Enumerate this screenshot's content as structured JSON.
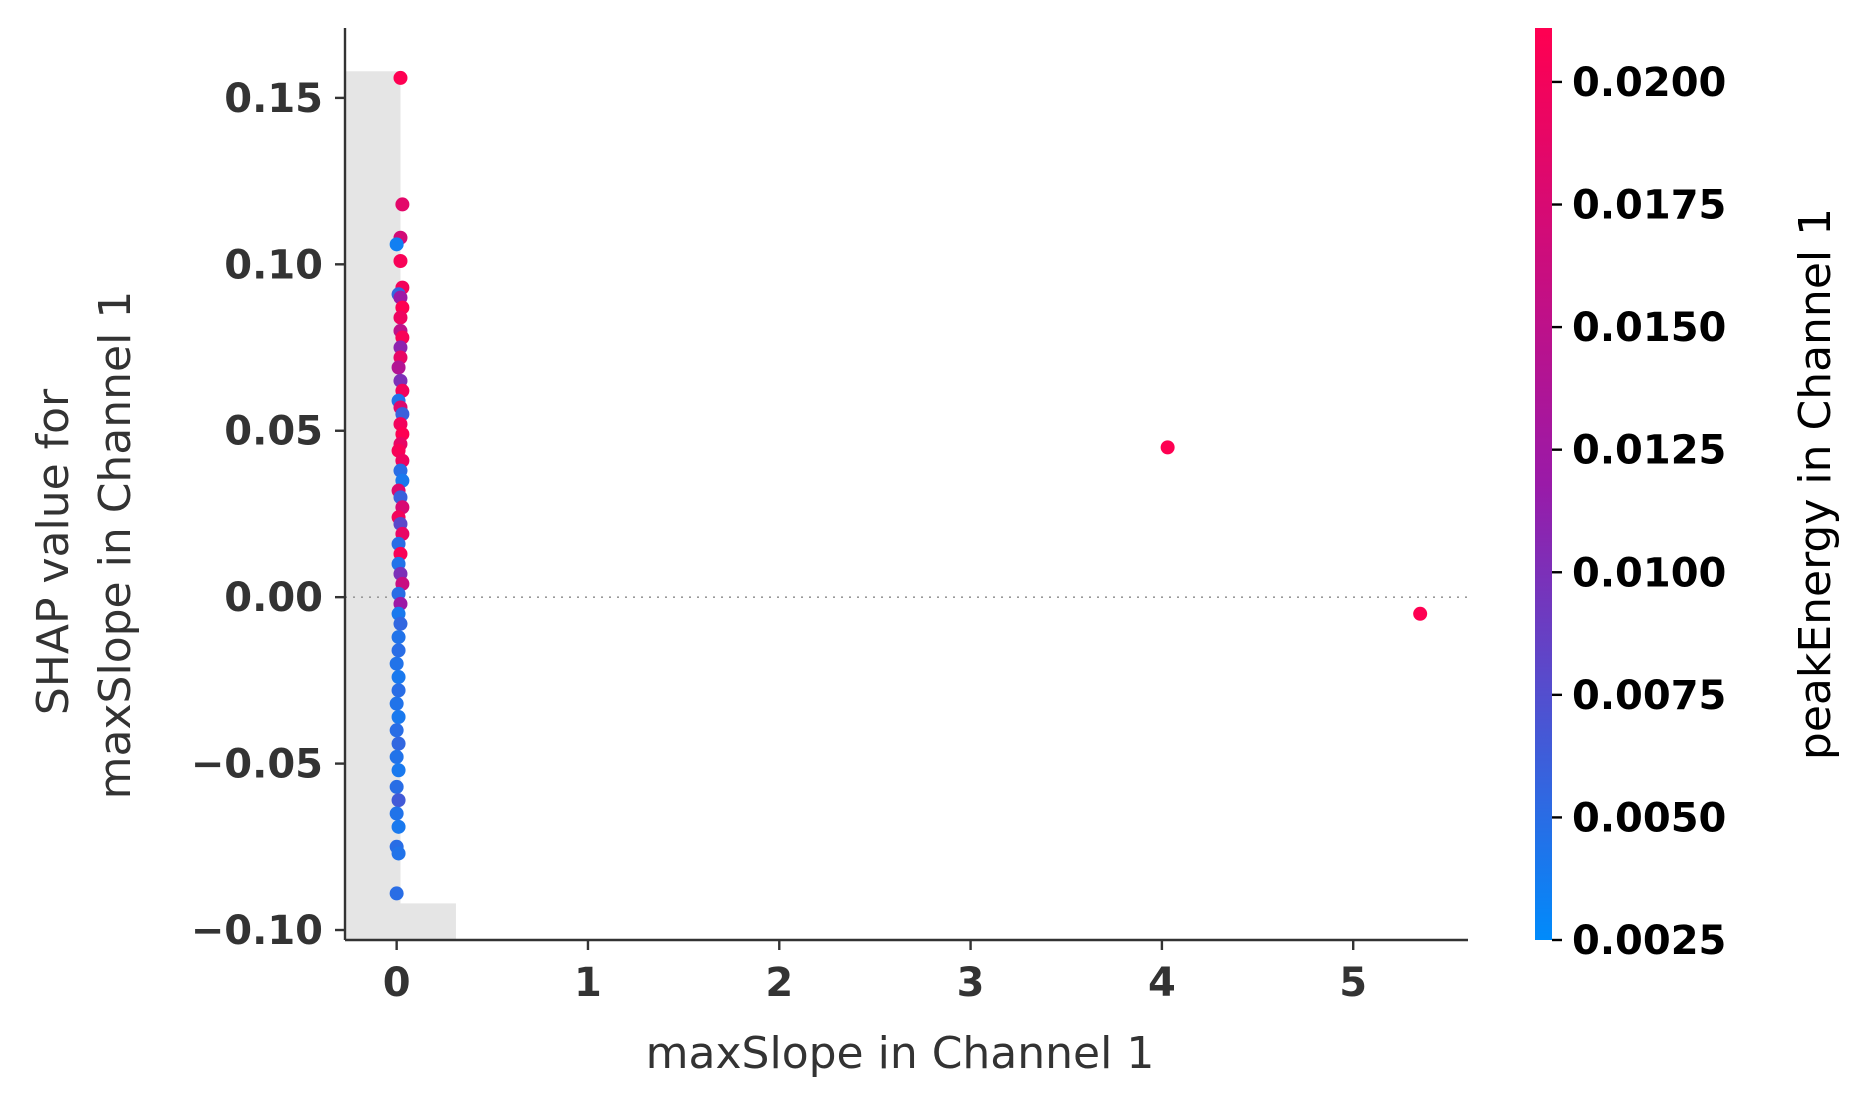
{
  "chart_data": {
    "type": "scatter",
    "xlabel": "maxSlope in Channel 1",
    "ylabel_line1": "SHAP value for",
    "ylabel_line2": "maxSlope in Channel 1",
    "colorbar_label": "peakEnergy in Channel 1",
    "xlim": [
      -0.27,
      5.6
    ],
    "ylim": [
      -0.103,
      0.171
    ],
    "x_ticks": [
      {
        "value": 0,
        "label": "0"
      },
      {
        "value": 1,
        "label": "1"
      },
      {
        "value": 2,
        "label": "2"
      },
      {
        "value": 3,
        "label": "3"
      },
      {
        "value": 4,
        "label": "4"
      },
      {
        "value": 5,
        "label": "5"
      }
    ],
    "y_ticks": [
      {
        "value": 0.15,
        "label": "0.15"
      },
      {
        "value": 0.1,
        "label": "0.10"
      },
      {
        "value": 0.05,
        "label": "0.05"
      },
      {
        "value": 0.0,
        "label": "0.00"
      },
      {
        "value": -0.05,
        "label": "−0.05"
      },
      {
        "value": -0.1,
        "label": "−0.10"
      }
    ],
    "colorbar": {
      "min": 0.0025,
      "max": 0.0211,
      "color_low": "#008bfb",
      "color_mid": "#9a1aa8",
      "color_high": "#ff0051",
      "ticks": [
        {
          "value": 0.0025,
          "label": "0.0025"
        },
        {
          "value": 0.005,
          "label": "0.0050"
        },
        {
          "value": 0.0075,
          "label": "0.0075"
        },
        {
          "value": 0.01,
          "label": "0.0100"
        },
        {
          "value": 0.0125,
          "label": "0.0125"
        },
        {
          "value": 0.015,
          "label": "0.0150"
        },
        {
          "value": 0.0175,
          "label": "0.0175"
        },
        {
          "value": 0.02,
          "label": "0.0200"
        }
      ]
    },
    "histogram": {
      "color": "#e5e5e5",
      "bins": [
        {
          "x0": -0.27,
          "x1": 0.02,
          "top": 0.158
        },
        {
          "x0": 0.02,
          "x1": 0.31,
          "top": -0.092
        }
      ],
      "baseline": -0.103
    },
    "zero_line": {
      "y": 0.0,
      "color": "#999999"
    },
    "points": [
      {
        "x": 0.02,
        "y": 0.156,
        "c": 0.021
      },
      {
        "x": 0.03,
        "y": 0.118,
        "c": 0.0185
      },
      {
        "x": 0.02,
        "y": 0.108,
        "c": 0.017
      },
      {
        "x": 0.0,
        "y": 0.106,
        "c": 0.0035
      },
      {
        "x": 0.02,
        "y": 0.101,
        "c": 0.0205
      },
      {
        "x": 0.03,
        "y": 0.093,
        "c": 0.02
      },
      {
        "x": 0.01,
        "y": 0.091,
        "c": 0.0055
      },
      {
        "x": 0.02,
        "y": 0.09,
        "c": 0.012
      },
      {
        "x": 0.03,
        "y": 0.087,
        "c": 0.021
      },
      {
        "x": 0.02,
        "y": 0.084,
        "c": 0.0195
      },
      {
        "x": 0.02,
        "y": 0.08,
        "c": 0.015
      },
      {
        "x": 0.03,
        "y": 0.078,
        "c": 0.0205
      },
      {
        "x": 0.02,
        "y": 0.075,
        "c": 0.011
      },
      {
        "x": 0.02,
        "y": 0.072,
        "c": 0.019
      },
      {
        "x": 0.01,
        "y": 0.069,
        "c": 0.014
      },
      {
        "x": 0.02,
        "y": 0.065,
        "c": 0.01
      },
      {
        "x": 0.03,
        "y": 0.062,
        "c": 0.02
      },
      {
        "x": 0.01,
        "y": 0.059,
        "c": 0.0045
      },
      {
        "x": 0.02,
        "y": 0.057,
        "c": 0.018
      },
      {
        "x": 0.03,
        "y": 0.055,
        "c": 0.006
      },
      {
        "x": 0.02,
        "y": 0.052,
        "c": 0.02
      },
      {
        "x": 0.03,
        "y": 0.049,
        "c": 0.021
      },
      {
        "x": 0.02,
        "y": 0.046,
        "c": 0.019
      },
      {
        "x": 0.01,
        "y": 0.044,
        "c": 0.0205
      },
      {
        "x": 0.03,
        "y": 0.041,
        "c": 0.0195
      },
      {
        "x": 0.02,
        "y": 0.038,
        "c": 0.005
      },
      {
        "x": 0.03,
        "y": 0.035,
        "c": 0.004
      },
      {
        "x": 0.01,
        "y": 0.032,
        "c": 0.018
      },
      {
        "x": 0.02,
        "y": 0.03,
        "c": 0.006
      },
      {
        "x": 0.03,
        "y": 0.027,
        "c": 0.0175
      },
      {
        "x": 0.01,
        "y": 0.024,
        "c": 0.02
      },
      {
        "x": 0.02,
        "y": 0.022,
        "c": 0.008
      },
      {
        "x": 0.03,
        "y": 0.019,
        "c": 0.019
      },
      {
        "x": 0.01,
        "y": 0.016,
        "c": 0.005
      },
      {
        "x": 0.02,
        "y": 0.013,
        "c": 0.0205
      },
      {
        "x": 0.01,
        "y": 0.01,
        "c": 0.0045
      },
      {
        "x": 0.02,
        "y": 0.007,
        "c": 0.01
      },
      {
        "x": 0.03,
        "y": 0.004,
        "c": 0.016
      },
      {
        "x": 0.01,
        "y": 0.001,
        "c": 0.005
      },
      {
        "x": 0.02,
        "y": -0.002,
        "c": 0.012
      },
      {
        "x": 0.01,
        "y": -0.005,
        "c": 0.004
      },
      {
        "x": 0.02,
        "y": -0.008,
        "c": 0.0055
      },
      {
        "x": 0.01,
        "y": -0.012,
        "c": 0.0045
      },
      {
        "x": 0.01,
        "y": -0.016,
        "c": 0.005
      },
      {
        "x": 0.0,
        "y": -0.02,
        "c": 0.0045
      },
      {
        "x": 0.01,
        "y": -0.024,
        "c": 0.004
      },
      {
        "x": 0.01,
        "y": -0.028,
        "c": 0.005
      },
      {
        "x": 0.0,
        "y": -0.032,
        "c": 0.0045
      },
      {
        "x": 0.01,
        "y": -0.036,
        "c": 0.004
      },
      {
        "x": 0.0,
        "y": -0.04,
        "c": 0.005
      },
      {
        "x": 0.01,
        "y": -0.044,
        "c": 0.0055
      },
      {
        "x": 0.0,
        "y": -0.048,
        "c": 0.0045
      },
      {
        "x": 0.01,
        "y": -0.052,
        "c": 0.004
      },
      {
        "x": 0.0,
        "y": -0.057,
        "c": 0.005
      },
      {
        "x": 0.01,
        "y": -0.061,
        "c": 0.0065
      },
      {
        "x": 0.0,
        "y": -0.065,
        "c": 0.0045
      },
      {
        "x": 0.01,
        "y": -0.069,
        "c": 0.004
      },
      {
        "x": 0.0,
        "y": -0.075,
        "c": 0.005
      },
      {
        "x": 0.01,
        "y": -0.077,
        "c": 0.0045
      },
      {
        "x": 0.0,
        "y": -0.089,
        "c": 0.005
      },
      {
        "x": 4.03,
        "y": 0.045,
        "c": 0.021
      },
      {
        "x": 5.35,
        "y": -0.005,
        "c": 0.021
      }
    ]
  }
}
